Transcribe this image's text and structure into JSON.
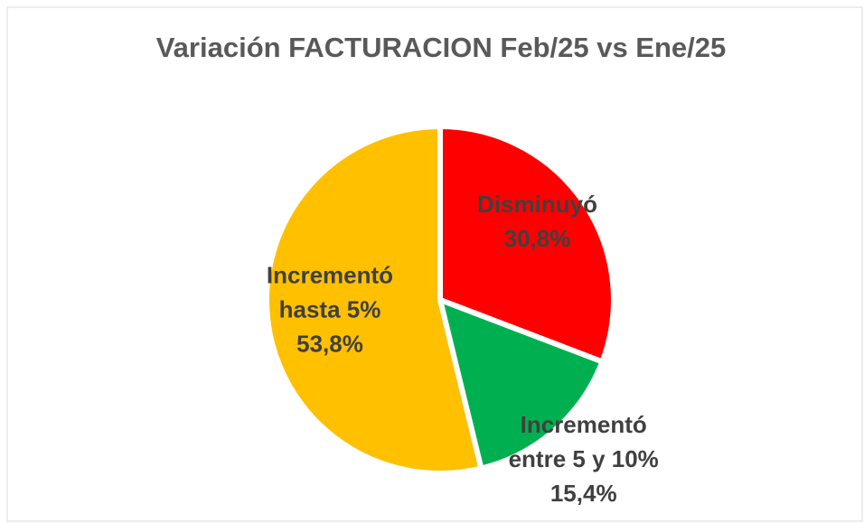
{
  "chart_data": {
    "type": "pie",
    "title": "Variación FACTURACION Feb/25 vs Ene/25",
    "categories": [
      "Disminuyó",
      "Incrementó entre 5 y 10%",
      "Incrementó hasta 5%"
    ],
    "values": [
      30.8,
      15.4,
      53.8
    ],
    "value_labels": [
      "30,8%",
      "15,4%",
      "53,8%"
    ],
    "colors": [
      "#ff0000",
      "#00b050",
      "#ffc000"
    ]
  }
}
